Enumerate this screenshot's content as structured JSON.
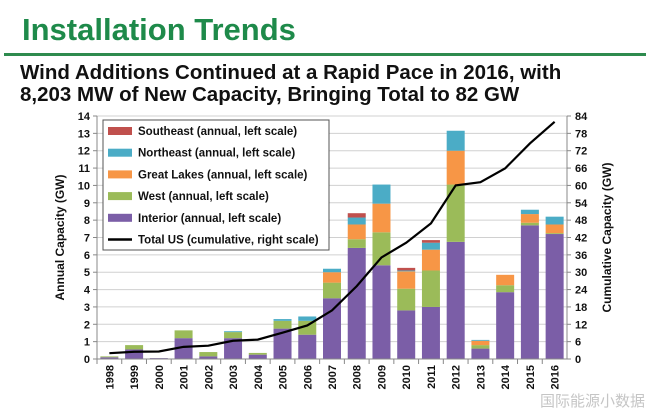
{
  "header": {
    "title": "Installation Trends",
    "subtitle_line1": "Wind Additions Continued at a Rapid Pace in 2016, with",
    "subtitle_line2": "8,203 MW of New Capacity, Bringing Total to 82 GW",
    "accent_color": "#1e8a4a"
  },
  "watermark": "国际能源小数据",
  "chart_data": {
    "type": "bar",
    "stacked": true,
    "categories": [
      "1998",
      "1999",
      "2000",
      "2001",
      "2002",
      "2003",
      "2004",
      "2005",
      "2006",
      "2007",
      "2008",
      "2009",
      "2010",
      "2011",
      "2012",
      "2013",
      "2014",
      "2015",
      "2016"
    ],
    "ylabel": "Annual Capacity (GW)",
    "ylabel_right": "Cumulative Capacity (GW)",
    "ylim": [
      0,
      14
    ],
    "yticks": [
      0,
      1,
      2,
      3,
      4,
      5,
      6,
      7,
      8,
      9,
      10,
      11,
      12,
      13,
      14
    ],
    "ylim_right": [
      0,
      84
    ],
    "yticks_right": [
      0,
      6,
      12,
      18,
      24,
      30,
      36,
      42,
      48,
      54,
      60,
      66,
      72,
      78,
      84
    ],
    "grid": true,
    "legend_position": "top-left",
    "series": [
      {
        "name": "Interior (annual, left scale)",
        "color": "#7b5ea7",
        "values": [
          0.1,
          0.55,
          0.05,
          1.2,
          0.15,
          1.2,
          0.25,
          1.75,
          1.4,
          3.5,
          6.4,
          5.4,
          2.8,
          3.0,
          6.75,
          0.6,
          3.85,
          7.7,
          7.2
        ]
      },
      {
        "name": "West (annual, left scale)",
        "color": "#9bbb59",
        "values": [
          0.05,
          0.25,
          0.0,
          0.45,
          0.25,
          0.35,
          0.1,
          0.45,
          0.8,
          0.9,
          0.5,
          1.9,
          1.25,
          2.1,
          3.3,
          0.2,
          0.4,
          0.15,
          0.05
        ]
      },
      {
        "name": "Great Lakes (annual, left scale)",
        "color": "#f79646",
        "values": [
          0,
          0,
          0,
          0,
          0,
          0,
          0,
          0,
          0,
          0.6,
          0.85,
          1.65,
          1.0,
          1.2,
          1.95,
          0.25,
          0.6,
          0.5,
          0.5
        ]
      },
      {
        "name": "Northeast (annual, left scale)",
        "color": "#4bacc6",
        "values": [
          0,
          0,
          0,
          0,
          0,
          0.05,
          0,
          0.1,
          0.25,
          0.2,
          0.4,
          1.1,
          0.05,
          0.4,
          1.15,
          0.05,
          0,
          0.25,
          0.45
        ]
      },
      {
        "name": "Southeast (annual, left scale)",
        "color": "#c0504d",
        "values": [
          0,
          0,
          0,
          0,
          0,
          0,
          0,
          0,
          0,
          0,
          0.25,
          0,
          0.15,
          0.15,
          0,
          0,
          0,
          0,
          0
        ]
      }
    ],
    "line_series": {
      "name": "Total US (cumulative, right scale)",
      "color": "#000000",
      "values": [
        2.0,
        2.5,
        2.6,
        4.2,
        4.6,
        6.3,
        6.7,
        9.1,
        11.6,
        16.8,
        25.2,
        35.1,
        40.2,
        46.9,
        60.0,
        61.1,
        65.9,
        74.5,
        82.0
      ]
    }
  }
}
